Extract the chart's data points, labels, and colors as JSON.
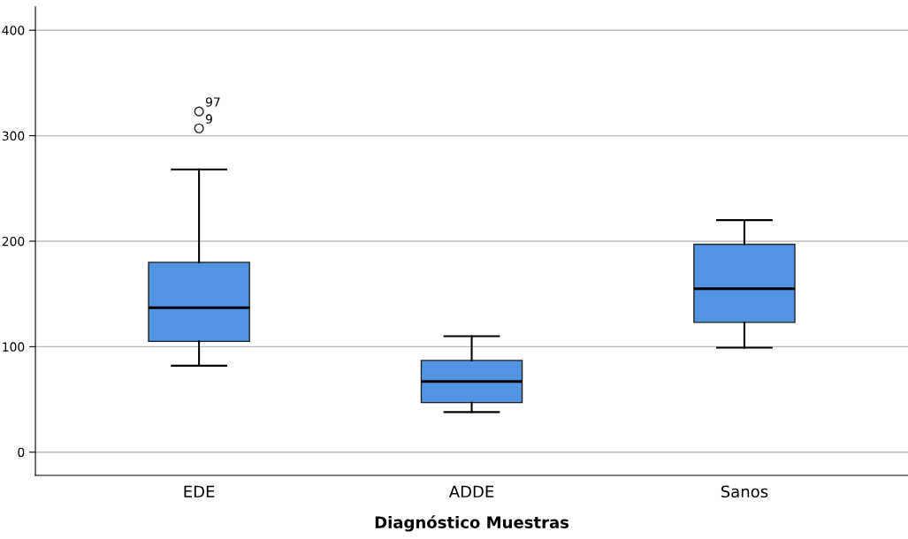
{
  "chart_data": {
    "type": "box",
    "xlabel": "Diagnóstico Muestras",
    "categories": [
      "EDE",
      "ADDE",
      "Sanos"
    ],
    "boxes": [
      {
        "low": 82,
        "q1": 105,
        "median": 137,
        "q3": 180,
        "high": 268,
        "outliers": [
          323,
          307
        ]
      },
      {
        "low": 38,
        "q1": 47,
        "median": 67,
        "q3": 87,
        "high": 110
      },
      {
        "low": 99,
        "q1": 123,
        "median": 155,
        "q3": 197,
        "high": 220
      }
    ],
    "color": "#5294e2",
    "ylim": [
      -22,
      422
    ],
    "yticks": [
      0,
      100,
      200,
      300,
      400
    ],
    "grid": "y",
    "annotations": [
      "97",
      "9"
    ]
  }
}
